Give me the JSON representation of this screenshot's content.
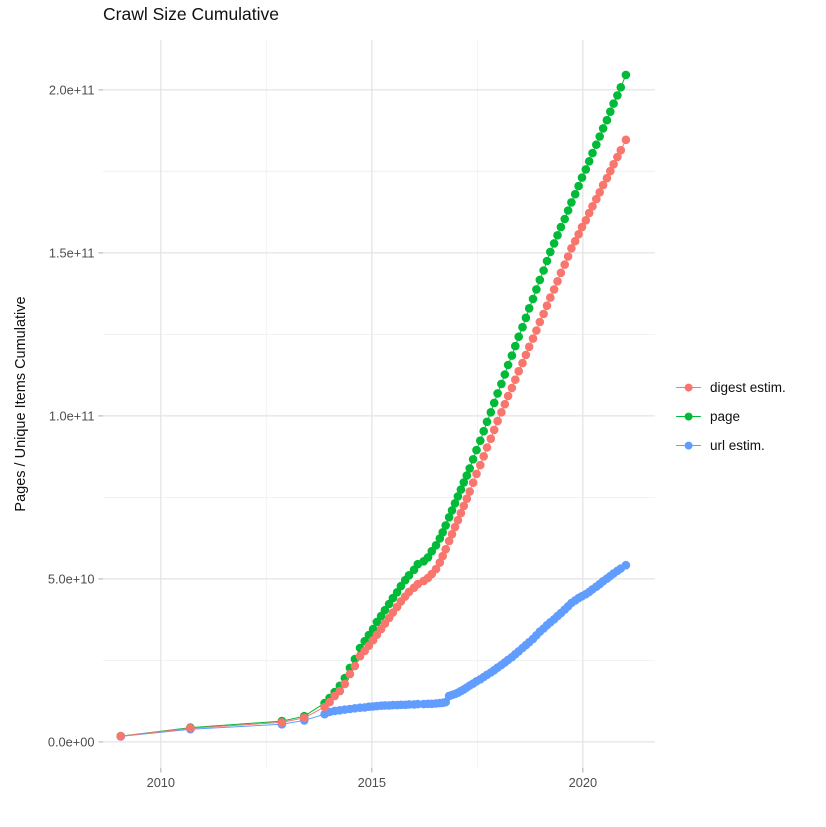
{
  "title": "Crawl Size Cumulative",
  "axes": {
    "y_label": "Pages / Unique Items Cumulative",
    "x_tick_labels": [
      "2010",
      "2015",
      "2020"
    ],
    "y_tick_labels": [
      "0.0e+00",
      "5.0e+10",
      "1.0e+11",
      "1.5e+11",
      "2.0e+11"
    ]
  },
  "legend": {
    "items": [
      {
        "label": "digest estim."
      },
      {
        "label": "page"
      },
      {
        "label": "url estim."
      }
    ]
  },
  "chart_data": {
    "type": "scatter",
    "title": "Crawl Size Cumulative",
    "xlabel": "",
    "ylabel": "Pages / Unique Items Cumulative",
    "unit": "value in billions (1e9) of pages / unique items",
    "grid": true,
    "legend_position": "right",
    "x_range": [
      2008.63,
      2021.71
    ],
    "y_range_billions": [
      -8,
      215.3
    ],
    "x_major_breaks": [
      2010,
      2015,
      2020
    ],
    "x_minor_breaks": [
      2012.5,
      2017.5
    ],
    "y_major_breaks_billions": [
      0,
      50,
      100,
      150,
      200
    ],
    "y_minor_breaks_billions": [
      25,
      75,
      125,
      175
    ],
    "x_tick_labels": [
      "2010",
      "2015",
      "2020"
    ],
    "y_tick_labels": [
      "0.0e+00",
      "5.0e+10",
      "1.0e+11",
      "1.5e+11",
      "2.0e+11"
    ],
    "colors": {
      "major_grid": "#e4e4e4",
      "minor_grid": "#f0f0f0",
      "tick": "#b3b3b3",
      "axis_text": "#4d4d4d"
    },
    "series": [
      {
        "name": "digest estim.",
        "color": "#F8766D",
        "points": [
          [
            2009.05,
            1.75
          ],
          [
            2010.7,
            4.2
          ],
          [
            2012.87,
            6.0
          ],
          [
            2013.4,
            7.4
          ],
          [
            2013.88,
            10.7
          ],
          [
            2014.0,
            12.2
          ],
          [
            2014.12,
            14.1
          ],
          [
            2014.24,
            15.6
          ],
          [
            2014.36,
            17.8
          ],
          [
            2014.48,
            20.8
          ],
          [
            2014.6,
            23.3
          ],
          [
            2014.72,
            26.3
          ],
          [
            2014.83,
            27.9
          ],
          [
            2014.93,
            29.5
          ],
          [
            2015.03,
            31.2
          ],
          [
            2015.12,
            32.9
          ],
          [
            2015.22,
            34.6
          ],
          [
            2015.31,
            36.3
          ],
          [
            2015.41,
            38.0
          ],
          [
            2015.5,
            39.7
          ],
          [
            2015.6,
            41.4
          ],
          [
            2015.69,
            43.1
          ],
          [
            2015.79,
            44.6
          ],
          [
            2015.88,
            46.0
          ],
          [
            2016.0,
            47.3
          ],
          [
            2016.09,
            48.4
          ],
          [
            2016.23,
            49.4
          ],
          [
            2016.33,
            50.3
          ],
          [
            2016.42,
            51.5
          ],
          [
            2016.52,
            53.0
          ],
          [
            2016.61,
            55.0
          ],
          [
            2016.68,
            57.0
          ],
          [
            2016.75,
            59.1
          ],
          [
            2016.83,
            61.6
          ],
          [
            2016.9,
            63.7
          ],
          [
            2016.97,
            65.9
          ],
          [
            2017.04,
            68.0
          ],
          [
            2017.11,
            70.2
          ],
          [
            2017.18,
            72.4
          ],
          [
            2017.25,
            74.6
          ],
          [
            2017.32,
            76.8
          ],
          [
            2017.4,
            79.5
          ],
          [
            2017.48,
            82.2
          ],
          [
            2017.57,
            84.9
          ],
          [
            2017.65,
            87.6
          ],
          [
            2017.73,
            90.3
          ],
          [
            2017.82,
            93.0
          ],
          [
            2017.9,
            95.7
          ],
          [
            2017.98,
            98.4
          ],
          [
            2018.07,
            101.1
          ],
          [
            2018.15,
            103.6
          ],
          [
            2018.23,
            106.1
          ],
          [
            2018.32,
            108.6
          ],
          [
            2018.4,
            111.1
          ],
          [
            2018.48,
            113.7
          ],
          [
            2018.57,
            116.2
          ],
          [
            2018.65,
            118.7
          ],
          [
            2018.73,
            121.2
          ],
          [
            2018.82,
            123.7
          ],
          [
            2018.9,
            126.2
          ],
          [
            2018.98,
            128.8
          ],
          [
            2019.07,
            131.3
          ],
          [
            2019.15,
            133.8
          ],
          [
            2019.23,
            136.3
          ],
          [
            2019.32,
            138.8
          ],
          [
            2019.4,
            141.3
          ],
          [
            2019.48,
            143.9
          ],
          [
            2019.57,
            146.4
          ],
          [
            2019.65,
            148.9
          ],
          [
            2019.73,
            151.4
          ],
          [
            2019.82,
            153.6
          ],
          [
            2019.9,
            155.7
          ],
          [
            2019.98,
            157.9
          ],
          [
            2020.07,
            160.0
          ],
          [
            2020.15,
            162.2
          ],
          [
            2020.23,
            164.3
          ],
          [
            2020.32,
            166.5
          ],
          [
            2020.4,
            168.6
          ],
          [
            2020.48,
            170.8
          ],
          [
            2020.57,
            172.9
          ],
          [
            2020.65,
            175.1
          ],
          [
            2020.73,
            177.2
          ],
          [
            2020.82,
            179.4
          ],
          [
            2020.9,
            181.5
          ],
          [
            2021.02,
            184.7
          ]
        ]
      },
      {
        "name": "page",
        "color": "#00BA38",
        "points": [
          [
            2009.05,
            1.8
          ],
          [
            2010.7,
            4.4
          ],
          [
            2012.87,
            6.4
          ],
          [
            2013.4,
            7.9
          ],
          [
            2013.88,
            11.9
          ],
          [
            2014.0,
            13.5
          ],
          [
            2014.12,
            15.3
          ],
          [
            2014.24,
            17.2
          ],
          [
            2014.36,
            19.6
          ],
          [
            2014.48,
            22.7
          ],
          [
            2014.6,
            25.4
          ],
          [
            2014.72,
            28.8
          ],
          [
            2014.83,
            30.9
          ],
          [
            2014.93,
            32.8
          ],
          [
            2015.03,
            34.6
          ],
          [
            2015.12,
            36.8
          ],
          [
            2015.22,
            38.6
          ],
          [
            2015.31,
            40.4
          ],
          [
            2015.41,
            42.3
          ],
          [
            2015.5,
            44.1
          ],
          [
            2015.6,
            45.9
          ],
          [
            2015.69,
            47.8
          ],
          [
            2015.79,
            49.6
          ],
          [
            2015.88,
            51.1
          ],
          [
            2016.0,
            52.8
          ],
          [
            2016.09,
            54.5
          ],
          [
            2016.23,
            55.4
          ],
          [
            2016.33,
            56.6
          ],
          [
            2016.42,
            58.5
          ],
          [
            2016.52,
            60.3
          ],
          [
            2016.61,
            62.4
          ],
          [
            2016.68,
            64.3
          ],
          [
            2016.75,
            66.4
          ],
          [
            2016.83,
            68.9
          ],
          [
            2016.9,
            71.0
          ],
          [
            2016.97,
            73.2
          ],
          [
            2017.04,
            75.3
          ],
          [
            2017.11,
            77.4
          ],
          [
            2017.18,
            79.6
          ],
          [
            2017.25,
            81.7
          ],
          [
            2017.32,
            83.9
          ],
          [
            2017.4,
            86.7
          ],
          [
            2017.48,
            89.5
          ],
          [
            2017.57,
            92.4
          ],
          [
            2017.65,
            95.3
          ],
          [
            2017.73,
            98.2
          ],
          [
            2017.82,
            101.1
          ],
          [
            2017.9,
            104.0
          ],
          [
            2017.98,
            106.9
          ],
          [
            2018.07,
            109.8
          ],
          [
            2018.15,
            112.7
          ],
          [
            2018.23,
            115.6
          ],
          [
            2018.32,
            118.5
          ],
          [
            2018.4,
            121.4
          ],
          [
            2018.48,
            124.3
          ],
          [
            2018.57,
            127.2
          ],
          [
            2018.65,
            130.1
          ],
          [
            2018.73,
            133.0
          ],
          [
            2018.82,
            135.9
          ],
          [
            2018.9,
            138.8
          ],
          [
            2018.98,
            141.7
          ],
          [
            2019.07,
            144.6
          ],
          [
            2019.15,
            147.5
          ],
          [
            2019.23,
            150.3
          ],
          [
            2019.32,
            152.9
          ],
          [
            2019.4,
            155.4
          ],
          [
            2019.48,
            157.9
          ],
          [
            2019.57,
            160.4
          ],
          [
            2019.65,
            163.0
          ],
          [
            2019.73,
            165.5
          ],
          [
            2019.82,
            168.0
          ],
          [
            2019.9,
            170.5
          ],
          [
            2019.98,
            173.1
          ],
          [
            2020.07,
            175.6
          ],
          [
            2020.15,
            178.1
          ],
          [
            2020.23,
            180.6
          ],
          [
            2020.32,
            183.2
          ],
          [
            2020.4,
            185.7
          ],
          [
            2020.48,
            188.2
          ],
          [
            2020.57,
            190.7
          ],
          [
            2020.65,
            193.3
          ],
          [
            2020.73,
            195.8
          ],
          [
            2020.82,
            198.3
          ],
          [
            2020.9,
            200.8
          ],
          [
            2021.02,
            204.6
          ]
        ]
      },
      {
        "name": "url estim.",
        "color": "#619CFF",
        "points": [
          [
            2009.05,
            1.7
          ],
          [
            2010.7,
            3.9
          ],
          [
            2012.87,
            5.4
          ],
          [
            2013.4,
            6.6
          ],
          [
            2013.88,
            8.5
          ],
          [
            2014.0,
            9.2
          ],
          [
            2014.12,
            9.5
          ],
          [
            2014.24,
            9.7
          ],
          [
            2014.36,
            9.9
          ],
          [
            2014.48,
            10.1
          ],
          [
            2014.6,
            10.3
          ],
          [
            2014.72,
            10.5
          ],
          [
            2014.83,
            10.6
          ],
          [
            2014.93,
            10.8
          ],
          [
            2015.03,
            10.9
          ],
          [
            2015.12,
            11.0
          ],
          [
            2015.22,
            11.1
          ],
          [
            2015.31,
            11.2
          ],
          [
            2015.41,
            11.2
          ],
          [
            2015.5,
            11.3
          ],
          [
            2015.6,
            11.3
          ],
          [
            2015.69,
            11.4
          ],
          [
            2015.79,
            11.4
          ],
          [
            2015.88,
            11.5
          ],
          [
            2016.0,
            11.5
          ],
          [
            2016.09,
            11.6
          ],
          [
            2016.23,
            11.6
          ],
          [
            2016.33,
            11.7
          ],
          [
            2016.42,
            11.7
          ],
          [
            2016.52,
            11.8
          ],
          [
            2016.61,
            11.9
          ],
          [
            2016.68,
            12.0
          ],
          [
            2016.75,
            12.2
          ],
          [
            2016.83,
            14.1
          ],
          [
            2016.9,
            14.4
          ],
          [
            2016.97,
            14.7
          ],
          [
            2017.04,
            15.1
          ],
          [
            2017.11,
            15.6
          ],
          [
            2017.18,
            16.1
          ],
          [
            2017.25,
            16.7
          ],
          [
            2017.32,
            17.3
          ],
          [
            2017.4,
            17.9
          ],
          [
            2017.48,
            18.6
          ],
          [
            2017.57,
            19.2
          ],
          [
            2017.65,
            19.9
          ],
          [
            2017.73,
            20.6
          ],
          [
            2017.82,
            21.3
          ],
          [
            2017.9,
            22.0
          ],
          [
            2017.98,
            22.8
          ],
          [
            2018.07,
            23.6
          ],
          [
            2018.15,
            24.4
          ],
          [
            2018.23,
            25.2
          ],
          [
            2018.32,
            26.0
          ],
          [
            2018.4,
            26.9
          ],
          [
            2018.48,
            27.8
          ],
          [
            2018.57,
            28.8
          ],
          [
            2018.65,
            29.7
          ],
          [
            2018.73,
            30.6
          ],
          [
            2018.82,
            31.6
          ],
          [
            2018.9,
            32.7
          ],
          [
            2018.98,
            33.8
          ],
          [
            2019.07,
            34.8
          ],
          [
            2019.15,
            35.8
          ],
          [
            2019.23,
            36.7
          ],
          [
            2019.32,
            37.6
          ],
          [
            2019.4,
            38.6
          ],
          [
            2019.48,
            39.5
          ],
          [
            2019.57,
            40.6
          ],
          [
            2019.65,
            41.6
          ],
          [
            2019.73,
            42.6
          ],
          [
            2019.82,
            43.4
          ],
          [
            2019.9,
            44.1
          ],
          [
            2019.98,
            44.7
          ],
          [
            2020.07,
            45.3
          ],
          [
            2020.15,
            46.0
          ],
          [
            2020.23,
            46.8
          ],
          [
            2020.32,
            47.6
          ],
          [
            2020.4,
            48.4
          ],
          [
            2020.48,
            49.3
          ],
          [
            2020.57,
            50.1
          ],
          [
            2020.65,
            50.9
          ],
          [
            2020.73,
            51.7
          ],
          [
            2020.82,
            52.5
          ],
          [
            2020.9,
            53.2
          ],
          [
            2021.02,
            54.2
          ]
        ]
      }
    ]
  }
}
